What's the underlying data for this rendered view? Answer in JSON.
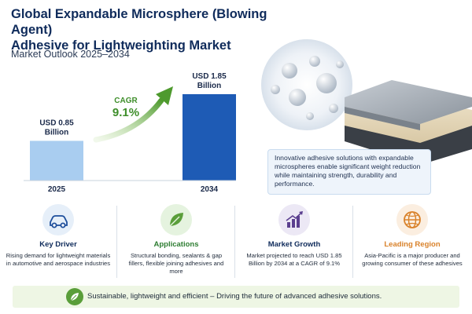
{
  "header": {
    "title_line1": "Global Expandable Microsphere (Blowing Agent)",
    "title_line2": "Adhesive for Lightweighting Market",
    "subtitle": "Market Outlook 2025–2034"
  },
  "chart_data": {
    "type": "bar",
    "categories": [
      "2025",
      "2034"
    ],
    "values": [
      0.85,
      1.85
    ],
    "value_labels": [
      [
        "USD 0.85",
        "Billion"
      ],
      [
        "USD 1.85",
        "Billion"
      ]
    ],
    "cagr_label": "CAGR",
    "cagr_value": "9.1%",
    "colors": [
      "#a9cdf0",
      "#1e5bb5"
    ]
  },
  "callout": {
    "text": "Innovative adhesive solutions with expandable microspheres enable significant weight reduction while maintaining strength, durability and performance."
  },
  "features": [
    {
      "icon": "car-icon",
      "title": "Key Driver",
      "title_color": "#0f2b5b",
      "circle_color": "#e6eff9",
      "desc": "Rising demand for lightweight materials in automotive and aerospace industries"
    },
    {
      "icon": "leaf-icon",
      "title": "Applications",
      "title_color": "#2e7d32",
      "circle_color": "#e5f3df",
      "desc": "Structural bonding, sealants & gap fillers, flexible joining adhesives and more"
    },
    {
      "icon": "growth-chart-icon",
      "title": "Market Growth",
      "title_color": "#0f2b5b",
      "circle_color": "#ece8f5",
      "desc": "Market projected to reach USD 1.85 Billion by 2034 at a CAGR of 9.1%"
    },
    {
      "icon": "globe-icon",
      "title": "Leading Region",
      "title_color": "#d9822b",
      "circle_color": "#fbeee0",
      "desc": "Asia-Pacific is a major producer and growing consumer of these adhesives"
    }
  ],
  "footer": {
    "text": "Sustainable, lightweight and efficient – Driving the future of advanced adhesive solutions."
  }
}
